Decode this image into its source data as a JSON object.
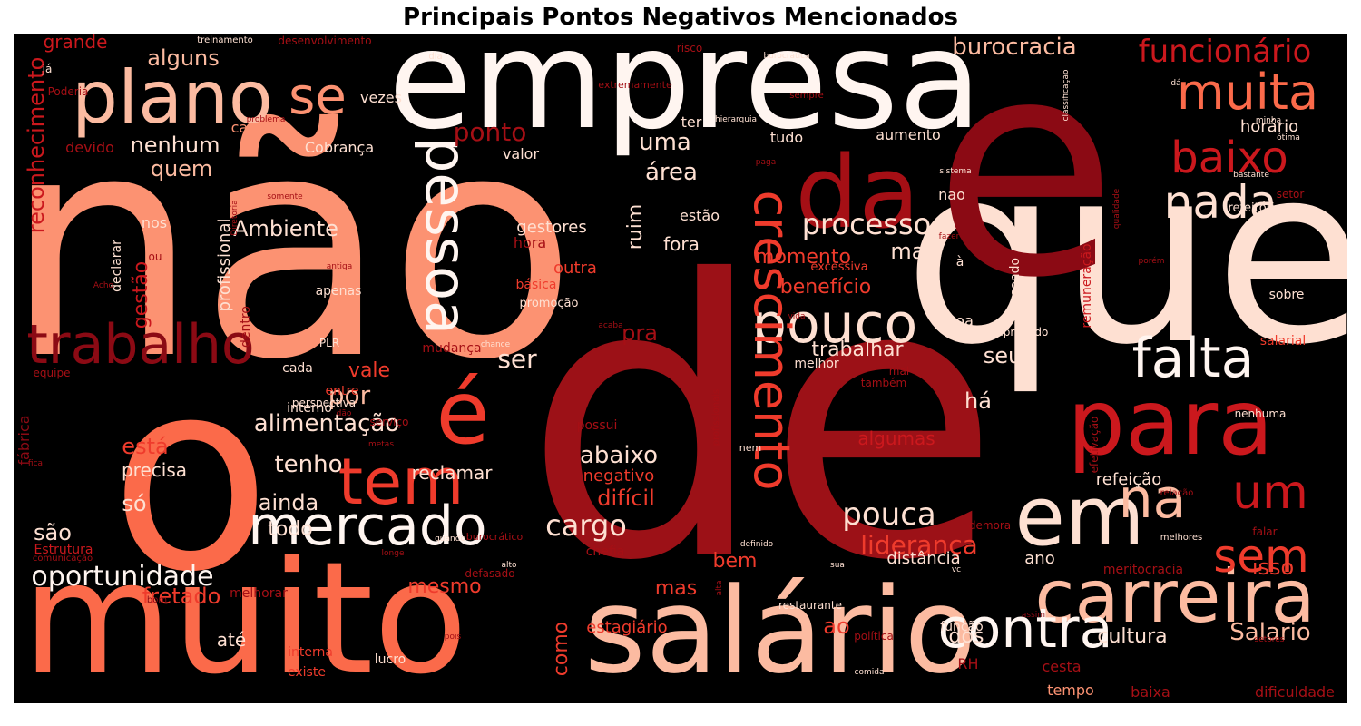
{
  "chart_data": {
    "type": "wordcloud",
    "title": "Principais Pontos Negativos Mencionados",
    "background": "#000000",
    "colormap": "Reds",
    "words": [
      {
        "text": "de",
        "weight": 1.0,
        "color": "#9c1117"
      },
      {
        "text": "não",
        "weight": 0.95,
        "color": "#fc9272"
      },
      {
        "text": "muito",
        "weight": 0.72,
        "color": "#fb6a4a"
      },
      {
        "text": "que",
        "weight": 0.8,
        "color": "#fee0d2"
      },
      {
        "text": "empresa",
        "weight": 0.78,
        "color": "#fff5f0"
      },
      {
        "text": "e",
        "weight": 0.76,
        "color": "#8b0a14"
      },
      {
        "text": "o",
        "weight": 0.7,
        "color": "#fb6a4a"
      },
      {
        "text": "salário",
        "weight": 0.6,
        "color": "#fcbba1"
      },
      {
        "text": "carreira",
        "weight": 0.45,
        "color": "#fcbba1"
      },
      {
        "text": "para",
        "weight": 0.48,
        "color": "#cb181d"
      },
      {
        "text": "em",
        "weight": 0.45,
        "color": "#fee0d2"
      },
      {
        "text": "da",
        "weight": 0.4,
        "color": "#a50f15"
      },
      {
        "text": "plano",
        "weight": 0.4,
        "color": "#fcbba1"
      },
      {
        "text": "mercado",
        "weight": 0.35,
        "color": "#fff5f0"
      },
      {
        "text": "pouco",
        "weight": 0.34,
        "color": "#fee0d2"
      },
      {
        "text": "crescimento",
        "weight": 0.34,
        "color": "#ef3b2c"
      },
      {
        "text": "pessoa",
        "weight": 0.33,
        "color": "#fff5f0"
      },
      {
        "text": "é",
        "weight": 0.33,
        "color": "#ef3b2c"
      },
      {
        "text": "trabalho",
        "weight": 0.3,
        "color": "#8b0a14"
      },
      {
        "text": "falta",
        "weight": 0.3,
        "color": "#fff5f0"
      },
      {
        "text": "contra",
        "weight": 0.3,
        "color": "#fff5f0"
      },
      {
        "text": "tem",
        "weight": 0.29,
        "color": "#ef3b2c"
      },
      {
        "text": "na",
        "weight": 0.28,
        "color": "#fcbba1"
      },
      {
        "text": "muita",
        "weight": 0.26,
        "color": "#fb6a4a"
      },
      {
        "text": "baixo",
        "weight": 0.26,
        "color": "#cb181d"
      },
      {
        "text": "nada",
        "weight": 0.25,
        "color": "#fee0d2"
      },
      {
        "text": "sem",
        "weight": 0.25,
        "color": "#ef3b2c"
      },
      {
        "text": "um",
        "weight": 0.25,
        "color": "#cb181d"
      },
      {
        "text": "se",
        "weight": 0.24,
        "color": "#fc9272"
      },
      {
        "text": "oportunidade",
        "weight": 0.18,
        "color": "#fff5f0"
      },
      {
        "text": "cargo",
        "weight": 0.15,
        "color": "#fee0d2"
      },
      {
        "text": "pouca",
        "weight": 0.15,
        "color": "#fee0d2"
      },
      {
        "text": "processo",
        "weight": 0.15,
        "color": "#fee0d2"
      },
      {
        "text": "funcionário",
        "weight": 0.16,
        "color": "#cb181d"
      },
      {
        "text": "burocracia",
        "weight": 0.13,
        "color": "#fcbba1"
      },
      {
        "text": "alimentação",
        "weight": 0.13,
        "color": "#fee0d2"
      },
      {
        "text": "liderança",
        "weight": 0.14,
        "color": "#ef3b2c"
      },
      {
        "text": "Salario",
        "weight": 0.13,
        "color": "#fcbba1"
      },
      {
        "text": "tenho",
        "weight": 0.13,
        "color": "#fee0d2"
      },
      {
        "text": "abaixo",
        "weight": 0.12,
        "color": "#fee0d2"
      },
      {
        "text": "Ambiente",
        "weight": 0.12,
        "color": "#fee0d2"
      },
      {
        "text": "alguns",
        "weight": 0.12,
        "color": "#fcbba1"
      },
      {
        "text": "ponto",
        "weight": 0.12,
        "color": "#a50f15"
      },
      {
        "text": "nenhum",
        "weight": 0.12,
        "color": "#fee0d2"
      },
      {
        "text": "uma",
        "weight": 0.12,
        "color": "#fee0d2"
      },
      {
        "text": "área",
        "weight": 0.12,
        "color": "#fee0d2"
      },
      {
        "text": "quem",
        "weight": 0.12,
        "color": "#fcbba1"
      },
      {
        "text": "grande",
        "weight": 0.1,
        "color": "#cb181d"
      },
      {
        "text": "reconhecimento",
        "weight": 0.11,
        "color": "#cb181d"
      },
      {
        "text": "ser",
        "weight": 0.12,
        "color": "#fee0d2"
      },
      {
        "text": "por",
        "weight": 0.12,
        "color": "#fcbba1"
      },
      {
        "text": "mais",
        "weight": 0.12,
        "color": "#fee0d2"
      },
      {
        "text": "benefício",
        "weight": 0.12,
        "color": "#ef3b2c"
      },
      {
        "text": "momento",
        "weight": 0.11,
        "color": "#ef3b2c"
      },
      {
        "text": "trabalhar",
        "weight": 0.11,
        "color": "#fee0d2"
      },
      {
        "text": "ruim",
        "weight": 0.11,
        "color": "#fee0d2"
      },
      {
        "text": "seu",
        "weight": 0.11,
        "color": "#fee0d2"
      },
      {
        "text": "há",
        "weight": 0.11,
        "color": "#fee0d2"
      },
      {
        "text": "isso",
        "weight": 0.11,
        "color": "#ef3b2c"
      },
      {
        "text": "está",
        "weight": 0.11,
        "color": "#ef3b2c"
      },
      {
        "text": "ainda",
        "weight": 0.11,
        "color": "#fee0d2"
      },
      {
        "text": "todo",
        "weight": 0.11,
        "color": "#fee0d2"
      },
      {
        "text": "são",
        "weight": 0.11,
        "color": "#fee0d2"
      },
      {
        "text": "só",
        "weight": 0.11,
        "color": "#fee0d2"
      },
      {
        "text": "difícil",
        "weight": 0.11,
        "color": "#ef3b2c"
      },
      {
        "text": "fretado",
        "weight": 0.11,
        "color": "#ef3b2c"
      },
      {
        "text": "mesmo",
        "weight": 0.1,
        "color": "#ef3b2c"
      },
      {
        "text": "mas",
        "weight": 0.1,
        "color": "#ef3b2c"
      },
      {
        "text": "ao",
        "weight": 0.1,
        "color": "#ef3b2c"
      },
      {
        "text": "dos",
        "weight": 0.1,
        "color": "#fee0d2"
      },
      {
        "text": "cultura",
        "weight": 0.1,
        "color": "#fee0d2"
      },
      {
        "text": "como",
        "weight": 0.1,
        "color": "#ef3b2c"
      },
      {
        "text": "gestão",
        "weight": 0.1,
        "color": "#cb181d"
      },
      {
        "text": "vale",
        "weight": 0.1,
        "color": "#ef3b2c"
      },
      {
        "text": "pra",
        "weight": 0.1,
        "color": "#a50f15"
      },
      {
        "text": "precisa",
        "weight": 0.1,
        "color": "#fee0d2"
      },
      {
        "text": "fora",
        "weight": 0.1,
        "color": "#fee0d2"
      },
      {
        "text": "bem",
        "weight": 0.1,
        "color": "#ef3b2c"
      },
      {
        "text": "até",
        "weight": 0.1,
        "color": "#fee0d2"
      },
      {
        "text": "algumas",
        "weight": 0.09,
        "color": "#cb181d"
      },
      {
        "text": "reclamar",
        "weight": 0.09,
        "color": "#fee0d2"
      },
      {
        "text": "negativo",
        "weight": 0.09,
        "color": "#ef3b2c"
      },
      {
        "text": "estagiário",
        "weight": 0.09,
        "color": "#ef3b2c"
      },
      {
        "text": "outra",
        "weight": 0.09,
        "color": "#ef3b2c"
      },
      {
        "text": "gestores",
        "weight": 0.09,
        "color": "#fee0d2"
      },
      {
        "text": "profissional",
        "weight": 0.09,
        "color": "#fee0d2"
      },
      {
        "text": "horário",
        "weight": 0.09,
        "color": "#fee0d2"
      },
      {
        "text": "refeição",
        "weight": 0.09,
        "color": "#fee0d2"
      },
      {
        "text": "distância",
        "weight": 0.09,
        "color": "#fee0d2"
      },
      {
        "text": "ano",
        "weight": 0.09,
        "color": "#fee0d2"
      },
      {
        "text": "Cobrança",
        "weight": 0.08,
        "color": "#fee0d2"
      },
      {
        "text": "tudo",
        "weight": 0.08,
        "color": "#fee0d2"
      },
      {
        "text": "aumento",
        "weight": 0.08,
        "color": "#fee0d2"
      },
      {
        "text": "estão",
        "weight": 0.08,
        "color": "#fee0d2"
      },
      {
        "text": "nao",
        "weight": 0.08,
        "color": "#fee0d2"
      },
      {
        "text": "nos",
        "weight": 0.08,
        "color": "#fee0d2"
      },
      {
        "text": "ter",
        "weight": 0.08,
        "color": "#fee0d2"
      },
      {
        "text": "valor",
        "weight": 0.08,
        "color": "#fee0d2"
      },
      {
        "text": "vezes",
        "weight": 0.08,
        "color": "#fee0d2"
      },
      {
        "text": "carga",
        "weight": 0.08,
        "color": "#fc9272"
      },
      {
        "text": "devido",
        "weight": 0.08,
        "color": "#a50f15"
      },
      {
        "text": "hora",
        "weight": 0.08,
        "color": "#a50f15"
      },
      {
        "text": "tempo",
        "weight": 0.08,
        "color": "#fc9272"
      },
      {
        "text": "cesta",
        "weight": 0.08,
        "color": "#a50f15"
      },
      {
        "text": "baixa",
        "weight": 0.07,
        "color": "#a50f15"
      },
      {
        "text": "dificuldade",
        "weight": 0.07,
        "color": "#a50f15"
      },
      {
        "text": "RH",
        "weight": 0.07,
        "color": "#a50f15"
      },
      {
        "text": "boa",
        "weight": 0.07,
        "color": "#fee0d2"
      },
      {
        "text": "melhor",
        "weight": 0.07,
        "color": "#fee0d2"
      },
      {
        "text": "cada",
        "weight": 0.07,
        "color": "#fee0d2"
      },
      {
        "text": "entre",
        "weight": 0.07,
        "color": "#ef3b2c"
      },
      {
        "text": "interno",
        "weight": 0.07,
        "color": "#fee0d2"
      },
      {
        "text": "interna",
        "weight": 0.07,
        "color": "#ef3b2c"
      },
      {
        "text": "existe",
        "weight": 0.07,
        "color": "#ef3b2c"
      },
      {
        "text": "lucro",
        "weight": 0.07,
        "color": "#fee0d2"
      },
      {
        "text": "função",
        "weight": 0.07,
        "color": "#fee0d2"
      },
      {
        "text": "declarar",
        "weight": 0.07,
        "color": "#fee0d2"
      },
      {
        "text": "dentro",
        "weight": 0.07,
        "color": "#a50f15"
      },
      {
        "text": "apenas",
        "weight": 0.07,
        "color": "#fee0d2"
      },
      {
        "text": "básica",
        "weight": 0.07,
        "color": "#ef3b2c"
      },
      {
        "text": "promoção",
        "weight": 0.06,
        "color": "#fee0d2"
      },
      {
        "text": "excessiva",
        "weight": 0.06,
        "color": "#ef3b2c"
      },
      {
        "text": "à",
        "weight": 0.06,
        "color": "#fee0d2"
      },
      {
        "text": "sendo",
        "weight": 0.06,
        "color": "#fee0d2"
      },
      {
        "text": "remuneração",
        "weight": 0.07,
        "color": "#cb181d"
      },
      {
        "text": "sobre",
        "weight": 0.06,
        "color": "#fee0d2"
      },
      {
        "text": "salarial",
        "weight": 0.06,
        "color": "#ef3b2c"
      },
      {
        "text": "refeitório",
        "weight": 0.06,
        "color": "#fee0d2"
      },
      {
        "text": "setor",
        "weight": 0.06,
        "color": "#a50f15"
      },
      {
        "text": "mudança",
        "weight": 0.06,
        "color": "#a50f15"
      },
      {
        "text": "possui",
        "weight": 0.06,
        "color": "#a50f15"
      },
      {
        "text": "meritocracia",
        "weight": 0.06,
        "color": "#a50f15"
      },
      {
        "text": "melhorar",
        "weight": 0.06,
        "color": "#a50f15"
      },
      {
        "text": "Estrutura",
        "weight": 0.06,
        "color": "#cb181d"
      },
      {
        "text": "fábrica",
        "weight": 0.06,
        "color": "#8b0a14"
      },
      {
        "text": "defasado",
        "weight": 0.06,
        "color": "#a50f15"
      },
      {
        "text": "chefia",
        "weight": 0.06,
        "color": "#a50f15"
      },
      {
        "text": "restaurante",
        "weight": 0.05,
        "color": "#fee0d2"
      },
      {
        "text": "política",
        "weight": 0.05,
        "color": "#a50f15"
      },
      {
        "text": "empregado",
        "weight": 0.05,
        "color": "#fee0d2"
      },
      {
        "text": "efetivação",
        "weight": 0.05,
        "color": "#a50f15"
      },
      {
        "text": "demora",
        "weight": 0.05,
        "color": "#a50f15"
      },
      {
        "text": "falar",
        "weight": 0.05,
        "color": "#a50f15"
      },
      {
        "text": "nenhuma",
        "weight": 0.05,
        "color": "#fee0d2"
      },
      {
        "text": "mal",
        "weight": 0.05,
        "color": "#a50f15"
      },
      {
        "text": "também",
        "weight": 0.05,
        "color": "#a50f15"
      },
      {
        "text": "perspectiva",
        "weight": 0.05,
        "color": "#fee0d2"
      },
      {
        "text": "serviço",
        "weight": 0.05,
        "color": "#a50f15"
      },
      {
        "text": "PLR",
        "weight": 0.05,
        "color": "#fee0d2"
      },
      {
        "text": "equipe",
        "weight": 0.05,
        "color": "#a50f15"
      },
      {
        "text": "Poderia",
        "weight": 0.05,
        "color": "#a50f15"
      },
      {
        "text": "já",
        "weight": 0.05,
        "color": "#fee0d2"
      },
      {
        "text": "ou",
        "weight": 0.05,
        "color": "#a50f15"
      },
      {
        "text": "desenvolvimento",
        "weight": 0.05,
        "color": "#a50f15"
      },
      {
        "text": "treinamento",
        "weight": 0.04,
        "color": "#fee0d2"
      },
      {
        "text": "dia",
        "weight": 0.04,
        "color": "#fee0d2"
      },
      {
        "text": "risco",
        "weight": 0.04,
        "color": "#a50f15"
      },
      {
        "text": "extremamente",
        "weight": 0.04,
        "color": "#a50f15"
      },
      {
        "text": "burocrática",
        "weight": 0.04,
        "color": "#fee0d2"
      },
      {
        "text": "hierarquia",
        "weight": 0.04,
        "color": "#fee0d2"
      },
      {
        "text": "sempre",
        "weight": 0.04,
        "color": "#a50f15"
      },
      {
        "text": "classificação",
        "weight": 0.04,
        "color": "#fee0d2"
      },
      {
        "text": "dá",
        "weight": 0.04,
        "color": "#fee0d2"
      },
      {
        "text": "minha",
        "weight": 0.04,
        "color": "#fee0d2"
      },
      {
        "text": "ótima",
        "weight": 0.04,
        "color": "#fee0d2"
      },
      {
        "text": "paga",
        "weight": 0.04,
        "color": "#a50f15"
      },
      {
        "text": "sistema",
        "weight": 0.04,
        "color": "#fee0d2"
      },
      {
        "text": "bastante",
        "weight": 0.04,
        "color": "#fee0d2"
      },
      {
        "text": "qualidade",
        "weight": 0.04,
        "color": "#a50f15"
      },
      {
        "text": "fazer",
        "weight": 0.04,
        "color": "#a50f15"
      },
      {
        "text": "porém",
        "weight": 0.04,
        "color": "#a50f15"
      },
      {
        "text": "problema",
        "weight": 0.04,
        "color": "#a50f15"
      },
      {
        "text": "somente",
        "weight": 0.04,
        "color": "#a50f15"
      },
      {
        "text": "Diretoria",
        "weight": 0.04,
        "color": "#a50f15"
      },
      {
        "text": "antiga",
        "weight": 0.04,
        "color": "#a50f15"
      },
      {
        "text": "Acho",
        "weight": 0.04,
        "color": "#a50f15"
      },
      {
        "text": "vida",
        "weight": 0.04,
        "color": "#a50f15"
      },
      {
        "text": "chance",
        "weight": 0.04,
        "color": "#fee0d2"
      },
      {
        "text": "acaba",
        "weight": 0.04,
        "color": "#a50f15"
      },
      {
        "text": "dão",
        "weight": 0.04,
        "color": "#a50f15"
      },
      {
        "text": "metas",
        "weight": 0.04,
        "color": "#a50f15"
      },
      {
        "text": "fica",
        "weight": 0.04,
        "color": "#a50f15"
      },
      {
        "text": "nem",
        "weight": 0.04,
        "color": "#fee0d2"
      },
      {
        "text": "quando",
        "weight": 0.04,
        "color": "#fee0d2"
      },
      {
        "text": "burocrático",
        "weight": 0.04,
        "color": "#a50f15"
      },
      {
        "text": "longe",
        "weight": 0.04,
        "color": "#a50f15"
      },
      {
        "text": "profissionais",
        "weight": 0.04,
        "color": "#a50f15"
      },
      {
        "text": "definido",
        "weight": 0.04,
        "color": "#fee0d2"
      },
      {
        "text": "relação",
        "weight": 0.04,
        "color": "#a50f15"
      },
      {
        "text": "melhores",
        "weight": 0.04,
        "color": "#fee0d2"
      },
      {
        "text": "comunicação",
        "weight": 0.04,
        "color": "#a50f15"
      },
      {
        "text": "alto",
        "weight": 0.04,
        "color": "#fee0d2"
      },
      {
        "text": "alta",
        "weight": 0.04,
        "color": "#a50f15"
      },
      {
        "text": "sua",
        "weight": 0.04,
        "color": "#fee0d2"
      },
      {
        "text": "vc",
        "weight": 0.04,
        "color": "#fee0d2"
      },
      {
        "text": "bom",
        "weight": 0.04,
        "color": "#8b0a14"
      },
      {
        "text": "pois",
        "weight": 0.04,
        "color": "#a50f15"
      },
      {
        "text": "comida",
        "weight": 0.04,
        "color": "#fee0d2"
      },
      {
        "text": "assim",
        "weight": 0.04,
        "color": "#8b0a14"
      },
      {
        "text": "setores",
        "weight": 0.04,
        "color": "#a50f15"
      }
    ]
  }
}
